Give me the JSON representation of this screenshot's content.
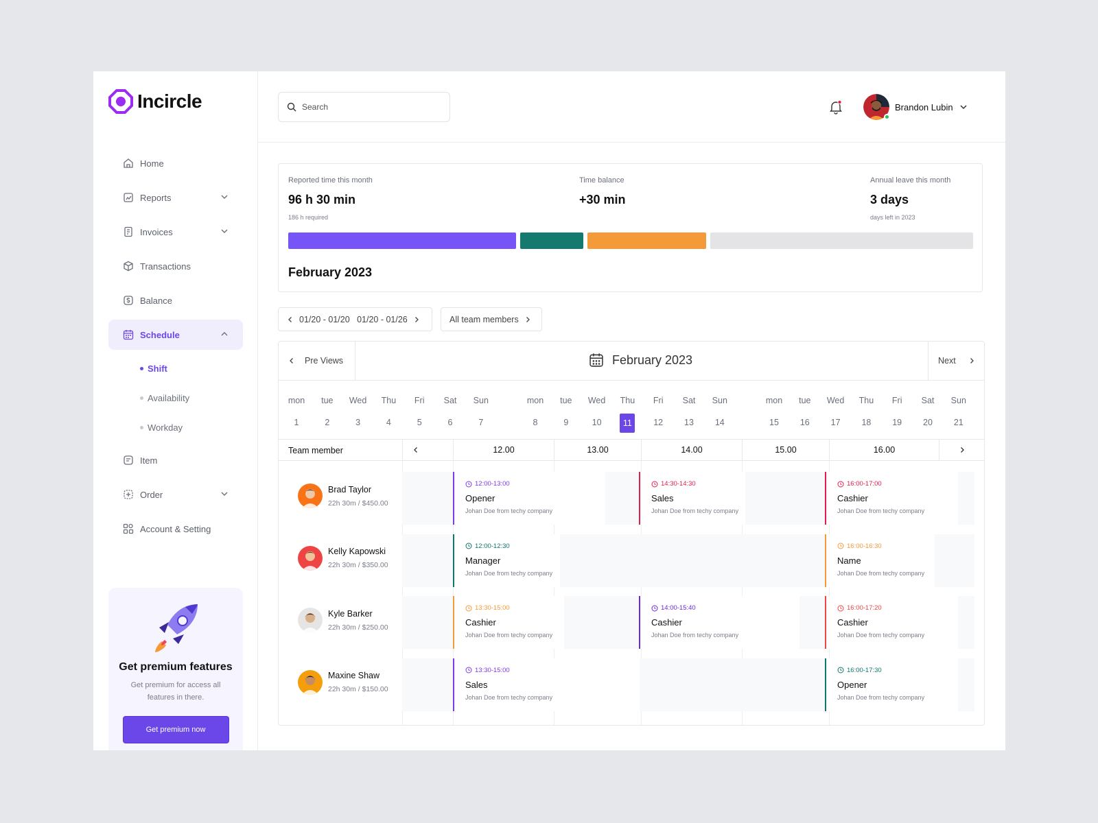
{
  "brand": {
    "name": "Incircle",
    "accent": "#6b46e8"
  },
  "sidebar": {
    "items": [
      {
        "label": "Home",
        "icon": "home-icon"
      },
      {
        "label": "Reports",
        "icon": "reports-icon"
      },
      {
        "label": "Invoices",
        "icon": "invoice-icon"
      },
      {
        "label": "Transactions",
        "icon": "box-icon"
      },
      {
        "label": "Balance",
        "icon": "dollar-icon"
      },
      {
        "label": "Schedule",
        "icon": "calendar-icon"
      },
      {
        "label": "Item",
        "icon": "item-icon"
      },
      {
        "label": "Order",
        "icon": "order-icon"
      },
      {
        "label": "Account & Setting",
        "icon": "grid-icon"
      }
    ],
    "sub_items": [
      {
        "label": "Shift"
      },
      {
        "label": "Availability"
      },
      {
        "label": "Workday"
      }
    ],
    "promo": {
      "title": "Get premium features",
      "desc": "Get premium for access all features in there.",
      "button": "Get premium now"
    }
  },
  "header": {
    "search_placeholder": "Search",
    "user_name": "Brandon Lubin"
  },
  "stats": {
    "reported": {
      "label": "Reported time this month",
      "value": "96 h 30 min",
      "sub": "186 h required"
    },
    "balance": {
      "label": "Time balance",
      "value": "+30 min"
    },
    "leave": {
      "label": "Annual leave this month",
      "value": "3 days",
      "sub": "days left in 2023"
    },
    "bars": [
      {
        "color": "#7654f6"
      },
      {
        "color": "#137a6d"
      },
      {
        "color": "#f59a38"
      },
      {
        "color": "#e4e4e6"
      }
    ],
    "month": "February 2023"
  },
  "filters": {
    "range": "01/20 - 01/20   01/20 - 01/26",
    "members": "All team members"
  },
  "calendar": {
    "prev_label": "Pre Views",
    "next_label": "Next",
    "title": "February 2023",
    "days": [
      [
        "mon",
        "1"
      ],
      [
        "tue",
        "2"
      ],
      [
        "Wed",
        "3"
      ],
      [
        "Thu",
        "4"
      ],
      [
        "Fri",
        "5"
      ],
      [
        "Sat",
        "6"
      ],
      [
        "Sun",
        "7"
      ],
      [
        "mon",
        "8"
      ],
      [
        "tue",
        "9"
      ],
      [
        "Wed",
        "10"
      ],
      [
        "Thu",
        "11"
      ],
      [
        "Fri",
        "12"
      ],
      [
        "Sat",
        "13"
      ],
      [
        "Sun",
        "14"
      ],
      [
        "mon",
        "15"
      ],
      [
        "tue",
        "16"
      ],
      [
        "Wed",
        "17"
      ],
      [
        "Thu",
        "18"
      ],
      [
        "Fri",
        "19"
      ],
      [
        "Sat",
        "20"
      ],
      [
        "Sun",
        "21"
      ]
    ],
    "today": "11",
    "timeline_label": "Team member",
    "hours": [
      "12.00",
      "13.00",
      "14.00",
      "15.00",
      "16.00"
    ]
  },
  "members": [
    {
      "name": "Brad Taylor",
      "meta": "22h 30m / $450.00",
      "events": [
        {
          "time": "12:00-13:00",
          "title": "Opener",
          "desc": "Johan Doe from techy company",
          "color": "#7c3aed"
        },
        {
          "time": "14:30-14:30",
          "title": "Sales",
          "desc": "Johan Doe from techy company",
          "color": "#e11d48"
        },
        {
          "time": "16:00-17:00",
          "title": "Cashier",
          "desc": "Johan Doe from techy company",
          "color": "#e11d48"
        }
      ]
    },
    {
      "name": "Kelly Kapowski",
      "meta": "22h 30m / $350.00",
      "events": [
        {
          "time": "12:00-12:30",
          "title": "Manager",
          "desc": "Johan Doe from techy company",
          "color": "#0f766e"
        },
        {
          "time": "16:00-16:30",
          "title": "Name",
          "desc": "Johan Doe from techy company",
          "color": "#f59a38"
        }
      ]
    },
    {
      "name": "Kyle Barker",
      "meta": "22h 30m / $250.00",
      "events": [
        {
          "time": "13:30-15:00",
          "title": "Cashier",
          "desc": "Johan Doe from techy company",
          "color": "#f59a38"
        },
        {
          "time": "14:00-15:40",
          "title": "Cashier",
          "desc": "Johan Doe from techy company",
          "color": "#6d28d9"
        },
        {
          "time": "16:00-17:20",
          "title": "Cashier",
          "desc": "Johan Doe from techy company",
          "color": "#ef4444"
        }
      ]
    },
    {
      "name": "Maxine Shaw",
      "meta": "22h 30m / $150.00",
      "events": [
        {
          "time": "13:30-15:00",
          "title": "Sales",
          "desc": "Johan Doe from techy company",
          "color": "#7c3aed"
        },
        {
          "time": "16:00-17:30",
          "title": "Opener",
          "desc": "Johan Doe from techy company",
          "color": "#0f766e"
        }
      ]
    }
  ]
}
